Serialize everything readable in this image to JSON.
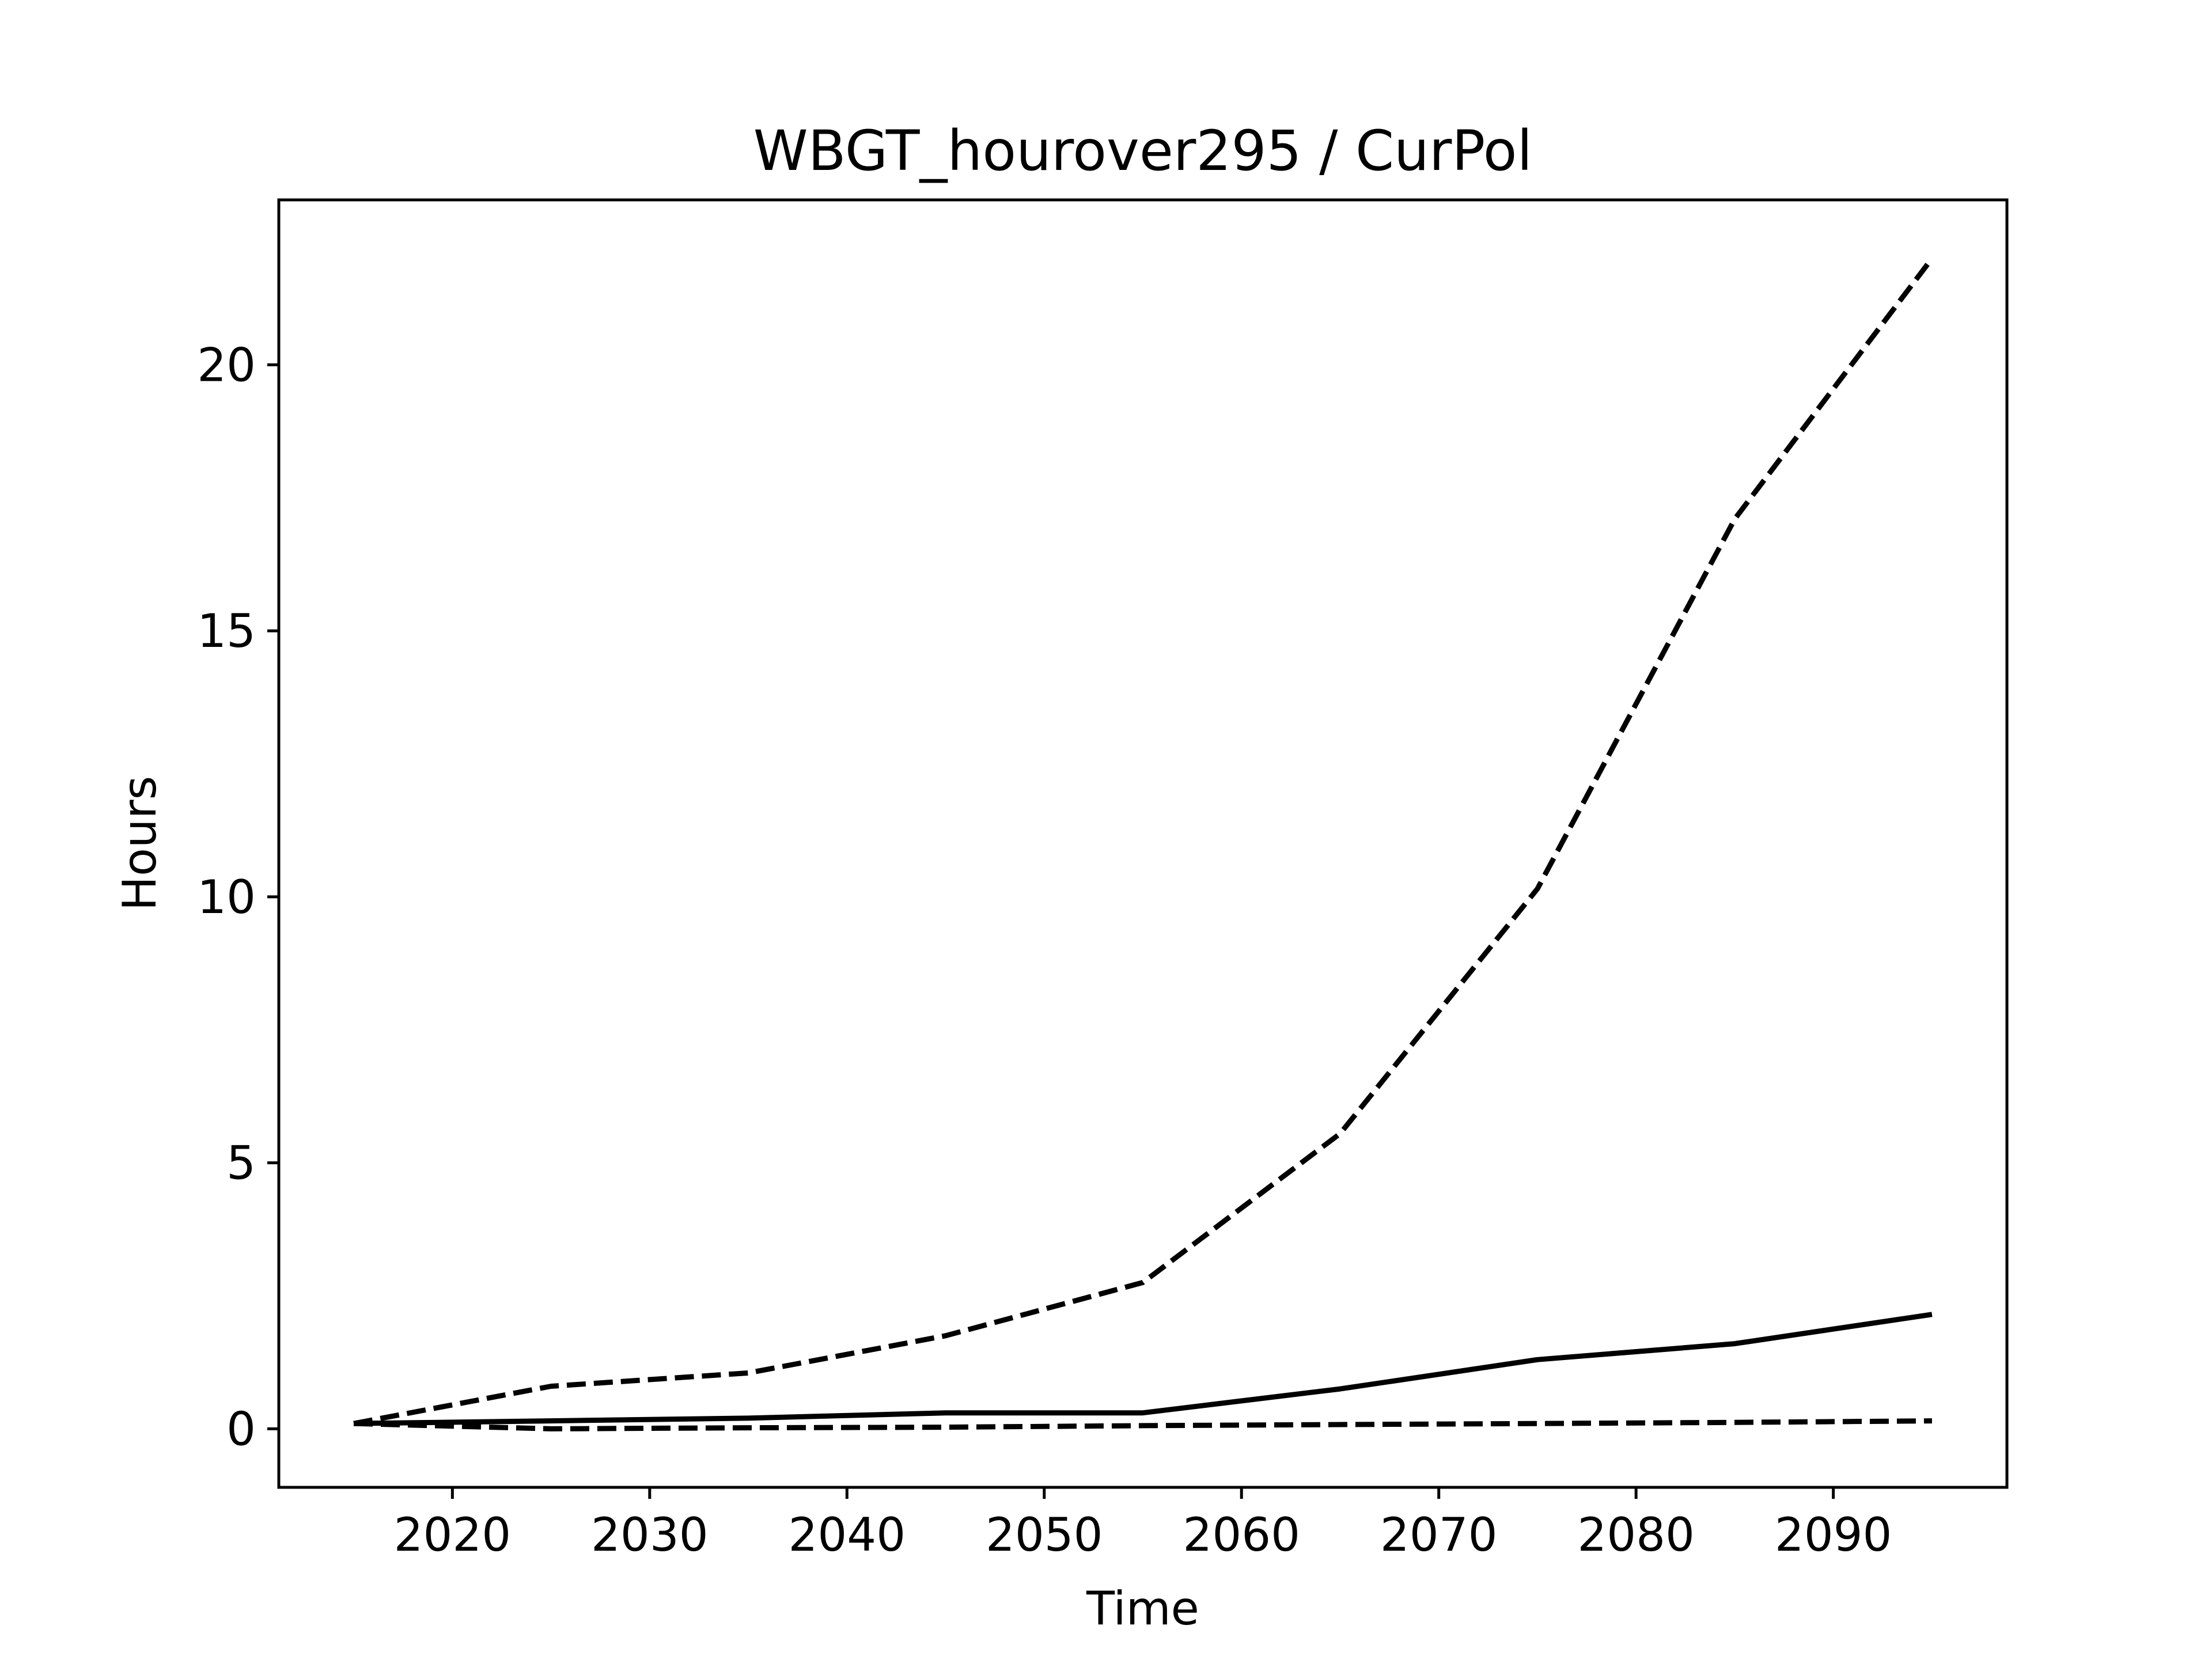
{
  "chart_data": {
    "type": "line",
    "title": "WBGT_hourover295 / CurPol",
    "xlabel": "Time",
    "ylabel": "Hours",
    "xlim": [
      2011.2,
      2098.8
    ],
    "ylim": [
      -1.1,
      23.1
    ],
    "x": [
      2015,
      2025,
      2035,
      2045,
      2055,
      2065,
      2075,
      2085,
      2095
    ],
    "x_ticks": [
      2020,
      2030,
      2040,
      2050,
      2060,
      2070,
      2080,
      2090
    ],
    "y_ticks": [
      0,
      5,
      10,
      15,
      20
    ],
    "grid": false,
    "legend": "none",
    "series": [
      {
        "style": "dashed",
        "color": "#000000",
        "values": [
          0.1,
          0.8,
          1.05,
          1.75,
          2.75,
          5.55,
          10.15,
          17.1,
          22.0
        ]
      },
      {
        "style": "solid",
        "color": "#000000",
        "values": [
          0.1,
          0.15,
          0.2,
          0.3,
          0.3,
          0.75,
          1.3,
          1.6,
          2.15
        ]
      },
      {
        "style": "dashed",
        "color": "#000000",
        "values": [
          0.1,
          0.0,
          0.02,
          0.03,
          0.06,
          0.08,
          0.1,
          0.12,
          0.15
        ]
      }
    ]
  }
}
